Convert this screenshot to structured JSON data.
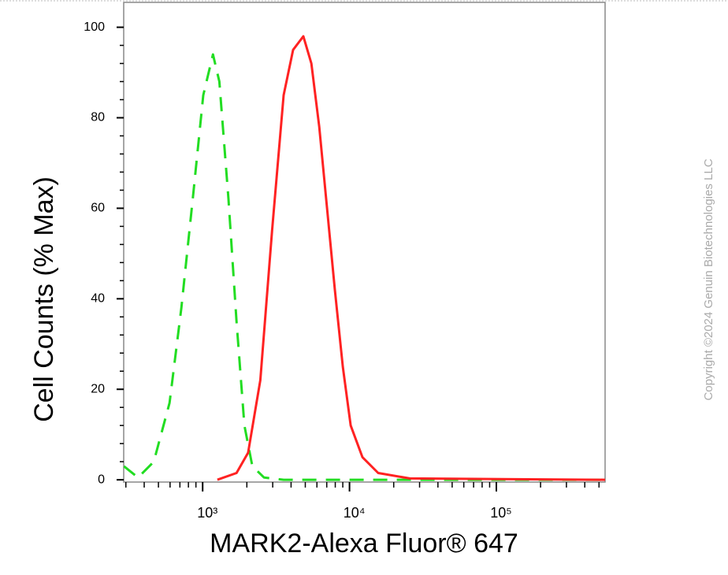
{
  "chart_data": {
    "type": "line",
    "y_label": "Cell Counts (% Max)",
    "x_label": "MARK2-Alexa Fluor® 647",
    "watermark": "Copyright ©2024 Genuin Biotechnologies LLC",
    "x_log": true,
    "xlim": [
      290,
      550000
    ],
    "ylim": [
      -0.5,
      105.5
    ],
    "xticks": [
      {
        "value": 1000,
        "label": "10³"
      },
      {
        "value": 10000,
        "label": "10⁴"
      },
      {
        "value": 100000,
        "label": "10⁵"
      }
    ],
    "xticks_minor": [
      300,
      400,
      500,
      600,
      700,
      800,
      900,
      2000,
      3000,
      4000,
      5000,
      6000,
      7000,
      8000,
      9000,
      20000,
      30000,
      40000,
      50000,
      60000,
      70000,
      80000,
      90000,
      200000,
      300000,
      400000,
      500000
    ],
    "yticks": [
      0,
      20,
      40,
      60,
      80,
      100
    ],
    "yticks_minor": [
      4,
      8,
      12,
      16,
      24,
      28,
      32,
      36,
      44,
      48,
      52,
      56,
      64,
      68,
      72,
      76,
      84,
      88,
      92,
      96
    ],
    "series": [
      {
        "color": "#22dd22",
        "dash": true,
        "x": [
          291,
          363,
          465,
          595,
          716,
          862,
          1010,
          1175,
          1300,
          1500,
          1700,
          1925,
          2180,
          2620,
          3560,
          10000,
          100000,
          550000
        ],
        "values": [
          3,
          0.5,
          4,
          17,
          38,
          63,
          85,
          94,
          88,
          62,
          35,
          12,
          3,
          0.5,
          0,
          0,
          0,
          0
        ]
      },
      {
        "color": "#ff2222",
        "dash": false,
        "x": [
          1260,
          1700,
          2040,
          2470,
          2970,
          3560,
          4130,
          4850,
          5500,
          6220,
          7030,
          7950,
          9000,
          10190,
          12250,
          15670,
          25700,
          550000
        ],
        "values": [
          0,
          1.5,
          6,
          22,
          55,
          85,
          95,
          98,
          92,
          78,
          60,
          42,
          25,
          12,
          5,
          1.5,
          0.3,
          0
        ]
      }
    ]
  }
}
